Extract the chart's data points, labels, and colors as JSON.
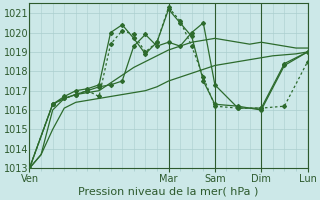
{
  "bg_color": "#cce8e8",
  "grid_color": "#aacece",
  "line_color": "#2d6b2d",
  "title": "Pression niveau de la mer( hPa )",
  "ylim": [
    1013.0,
    1021.5
  ],
  "yticks": [
    1013,
    1014,
    1015,
    1016,
    1017,
    1018,
    1019,
    1020,
    1021
  ],
  "total_hours": 144,
  "day_labels": [
    "Ven",
    "Mar",
    "Sam",
    "Dim",
    "Lun"
  ],
  "day_positions": [
    0,
    72,
    96,
    120,
    144
  ],
  "vline_color": "#2d5a2d",
  "font_color": "#2d5a2d",
  "font_size": 7,
  "series": [
    {
      "x": [
        0,
        6,
        12,
        18,
        24,
        30,
        36,
        42,
        48,
        54,
        60,
        66,
        72,
        78,
        84,
        90,
        96,
        102,
        108,
        114,
        120,
        126,
        132,
        138,
        144
      ],
      "y": [
        1013.0,
        1013.7,
        1015.0,
        1016.1,
        1016.4,
        1016.5,
        1016.6,
        1016.7,
        1016.8,
        1016.9,
        1017.0,
        1017.2,
        1017.5,
        1017.7,
        1017.9,
        1018.1,
        1018.3,
        1018.4,
        1018.5,
        1018.6,
        1018.7,
        1018.8,
        1018.85,
        1018.9,
        1019.0
      ],
      "style": "solid",
      "marker": null,
      "lw": 0.9
    },
    {
      "x": [
        0,
        6,
        12,
        18,
        24,
        30,
        36,
        42,
        48,
        54,
        60,
        66,
        72,
        78,
        84,
        90,
        96,
        102,
        108,
        114,
        120,
        126,
        132,
        138,
        144
      ],
      "y": [
        1013.0,
        1013.7,
        1016.0,
        1016.6,
        1016.8,
        1016.9,
        1017.0,
        1017.4,
        1017.8,
        1018.2,
        1018.5,
        1018.8,
        1019.1,
        1019.3,
        1019.5,
        1019.6,
        1019.7,
        1019.6,
        1019.5,
        1019.4,
        1019.5,
        1019.4,
        1019.3,
        1019.2,
        1019.2
      ],
      "style": "solid",
      "marker": null,
      "lw": 0.9
    },
    {
      "x": [
        0,
        12,
        18,
        24,
        30,
        36,
        42,
        48,
        54,
        60,
        66,
        72,
        78,
        84,
        90,
        96,
        108,
        120,
        132,
        144
      ],
      "y": [
        1013.0,
        1016.3,
        1016.6,
        1016.8,
        1017.0,
        1016.7,
        1019.4,
        1020.1,
        1019.9,
        1019.0,
        1019.5,
        1021.3,
        1020.6,
        1019.3,
        1017.7,
        1016.2,
        1016.1,
        1016.1,
        1016.2,
        1018.5
      ],
      "style": "dotted",
      "marker": "D",
      "lw": 0.9
    },
    {
      "x": [
        0,
        12,
        18,
        24,
        30,
        36,
        42,
        48,
        54,
        60,
        66,
        72,
        78,
        84,
        90,
        96,
        108,
        120,
        132,
        144
      ],
      "y": [
        1013.0,
        1016.3,
        1016.7,
        1017.0,
        1017.1,
        1017.3,
        1020.0,
        1020.4,
        1019.7,
        1018.9,
        1019.5,
        1021.2,
        1020.5,
        1019.8,
        1017.5,
        1016.3,
        1016.2,
        1016.0,
        1018.3,
        1019.0
      ],
      "style": "solid",
      "marker": "D",
      "lw": 0.9
    },
    {
      "x": [
        0,
        12,
        18,
        24,
        30,
        36,
        42,
        48,
        54,
        60,
        66,
        72,
        78,
        84,
        90,
        96,
        108,
        120,
        132,
        144
      ],
      "y": [
        1013.0,
        1016.3,
        1016.6,
        1016.8,
        1017.0,
        1017.2,
        1017.3,
        1017.5,
        1019.3,
        1019.9,
        1019.3,
        1019.5,
        1019.3,
        1020.0,
        1020.5,
        1017.3,
        1016.1,
        1016.1,
        1018.4,
        1019.0
      ],
      "style": "solid",
      "marker": "D",
      "lw": 0.9
    }
  ]
}
